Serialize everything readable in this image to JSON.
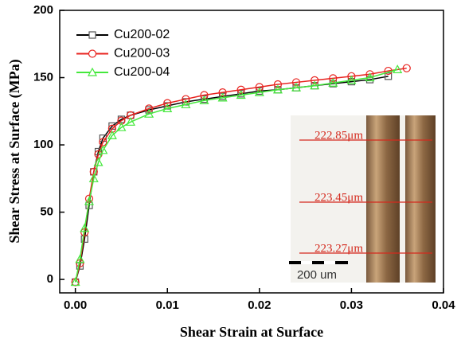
{
  "chart_data": {
    "type": "line",
    "xlabel": "Shear Strain at Surface",
    "ylabel": "Shear Stress at Surface (MPa)",
    "xlim": [
      -0.0017,
      0.04
    ],
    "ylim": [
      -10,
      200
    ],
    "xticks": [
      {
        "value": 0,
        "label": "0.00"
      },
      0.01,
      0.02,
      0.03,
      0.04
    ],
    "yticks": [
      0,
      50,
      100,
      150,
      200
    ],
    "legend": "upper left",
    "series": [
      {
        "name": "Cu200-02",
        "color": "#000000",
        "marker": "square",
        "marker_color": "#555555",
        "x": [
          0,
          0.0005,
          0.001,
          0.0015,
          0.002,
          0.0025,
          0.003,
          0.004,
          0.005,
          0.006,
          0.008,
          0.01,
          0.012,
          0.014,
          0.016,
          0.018,
          0.02,
          0.022,
          0.024,
          0.026,
          0.028,
          0.03,
          0.032,
          0.034
        ],
        "values": [
          -2,
          10,
          30,
          55,
          80,
          95,
          105,
          114,
          119,
          122,
          126,
          129,
          132,
          134,
          136,
          138,
          140,
          141,
          142.5,
          144,
          145.5,
          147,
          148.5,
          151
        ]
      },
      {
        "name": "Cu200-03",
        "color": "#e8221e",
        "marker": "circle",
        "marker_color": "#e8221e",
        "x": [
          0,
          0.0005,
          0.001,
          0.0015,
          0.002,
          0.0025,
          0.003,
          0.004,
          0.005,
          0.006,
          0.008,
          0.01,
          0.012,
          0.014,
          0.016,
          0.018,
          0.02,
          0.022,
          0.024,
          0.026,
          0.028,
          0.03,
          0.032,
          0.034,
          0.036
        ],
        "values": [
          -2,
          12,
          35,
          60,
          80,
          93,
          102,
          112,
          118,
          122,
          127,
          131,
          134,
          137,
          139,
          141,
          143,
          145,
          146.5,
          148,
          149.5,
          151,
          152.5,
          155,
          157
        ]
      },
      {
        "name": "Cu200-04",
        "color": "#44e83c",
        "marker": "triangle",
        "marker_color": "#44e83c",
        "x": [
          0,
          0.0005,
          0.001,
          0.0015,
          0.002,
          0.0025,
          0.003,
          0.004,
          0.005,
          0.006,
          0.008,
          0.01,
          0.012,
          0.014,
          0.016,
          0.018,
          0.02,
          0.022,
          0.024,
          0.026,
          0.028,
          0.03,
          0.032,
          0.035
        ],
        "values": [
          -2,
          15,
          38,
          58,
          75,
          87,
          96,
          107,
          113,
          117,
          123,
          127,
          130,
          133,
          135,
          137,
          139,
          141,
          142.5,
          144,
          146,
          148,
          150,
          156
        ]
      }
    ],
    "inset": {
      "labels": [
        "222.85μm",
        "223.45μm",
        "223.27μm"
      ],
      "scale_bar": "200 um"
    }
  }
}
